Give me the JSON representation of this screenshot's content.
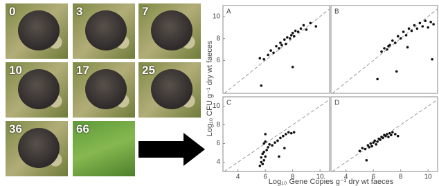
{
  "photos": [
    {
      "label": "0"
    },
    {
      "label": "3"
    },
    {
      "label": "7"
    },
    {
      "label": "10"
    },
    {
      "label": "17"
    },
    {
      "label": "25"
    },
    {
      "label": "36"
    },
    {
      "label": "66"
    }
  ],
  "axes": {
    "x_label": "Log₁₀ Gene Copies g⁻¹ dry wt faeces",
    "y_label": "Log₁₀ CFU g⁻¹ dry wt faeces"
  },
  "chart_data": [
    {
      "type": "scatter",
      "panel": "A",
      "color": "#111111",
      "identity_line": true,
      "xlim": [
        2.9,
        10.7
      ],
      "ylim": [
        3,
        11
      ],
      "yticks": [
        6,
        8,
        10
      ],
      "x": [
        5.6,
        5.9,
        6.2,
        6.4,
        6.6,
        6.8,
        7.0,
        7.1,
        7.2,
        7.4,
        7.5,
        7.6,
        7.8,
        7.9,
        8.0,
        8.1,
        8.2,
        8.4,
        8.6,
        8.8,
        9.0,
        9.3,
        9.7,
        5.7,
        8.0
      ],
      "values": [
        6.2,
        6.1,
        6.5,
        6.9,
        6.7,
        7.3,
        7.1,
        7.6,
        7.4,
        7.9,
        7.5,
        8.1,
        8.0,
        8.3,
        8.5,
        8.2,
        8.7,
        8.6,
        8.9,
        9.2,
        8.8,
        9.4,
        9.1,
        3.7,
        5.4
      ]
    },
    {
      "type": "scatter",
      "panel": "B",
      "color": "#111111",
      "identity_line": true,
      "xlim": [
        2.9,
        10.7
      ],
      "ylim": [
        3,
        11
      ],
      "x": [
        6.6,
        6.8,
        7.0,
        7.2,
        7.4,
        7.6,
        7.8,
        8.0,
        8.2,
        8.4,
        8.6,
        8.8,
        9.0,
        9.2,
        9.4,
        9.6,
        9.8,
        10.0,
        10.2,
        10.4,
        7.1,
        8.5,
        6.3,
        7.7,
        10.3
      ],
      "values": [
        6.8,
        7.1,
        7.0,
        7.4,
        7.8,
        7.6,
        8.2,
        8.0,
        8.6,
        8.3,
        8.9,
        8.7,
        9.2,
        8.9,
        9.4,
        9.1,
        9.6,
        9.0,
        9.5,
        9.3,
        7.3,
        7.2,
        4.3,
        5.0,
        6.1
      ]
    },
    {
      "type": "scatter",
      "panel": "C",
      "color": "#111111",
      "identity_line": true,
      "xlim": [
        2.9,
        10.7
      ],
      "ylim": [
        3,
        11
      ],
      "xticks": [
        4,
        6,
        8,
        10
      ],
      "yticks": [
        4,
        6,
        8,
        10
      ],
      "x": [
        5.6,
        5.7,
        5.7,
        5.8,
        5.8,
        5.9,
        5.9,
        6.0,
        6.0,
        6.1,
        6.2,
        6.3,
        6.5,
        6.7,
        6.9,
        7.1,
        7.3,
        7.5,
        7.7,
        7.9,
        8.1,
        6.0,
        7.0,
        7.4,
        5.9
      ],
      "values": [
        3.6,
        4.0,
        4.5,
        3.8,
        4.9,
        4.2,
        5.1,
        4.6,
        7.0,
        5.3,
        5.6,
        5.9,
        5.8,
        6.1,
        6.3,
        6.6,
        6.8,
        7.0,
        7.2,
        7.1,
        7.2,
        6.2,
        4.6,
        5.5,
        6.0
      ]
    },
    {
      "type": "scatter",
      "panel": "D",
      "color": "#111111",
      "identity_line": true,
      "xlim": [
        2.9,
        10.7
      ],
      "ylim": [
        3,
        11
      ],
      "xticks": [
        4,
        6,
        8,
        10
      ],
      "x": [
        5.0,
        5.2,
        5.4,
        5.6,
        5.7,
        5.8,
        5.9,
        6.0,
        6.1,
        6.2,
        6.3,
        6.4,
        6.5,
        6.6,
        6.7,
        6.8,
        6.9,
        7.0,
        7.1,
        7.2,
        7.3,
        7.4,
        7.6,
        7.8,
        5.5
      ],
      "values": [
        5.2,
        5.5,
        5.4,
        5.8,
        5.6,
        6.0,
        5.7,
        6.1,
        6.3,
        5.9,
        6.2,
        6.5,
        6.4,
        6.7,
        6.6,
        6.9,
        6.8,
        7.0,
        6.7,
        7.1,
        6.9,
        7.2,
        7.0,
        6.8,
        4.2
      ]
    }
  ]
}
